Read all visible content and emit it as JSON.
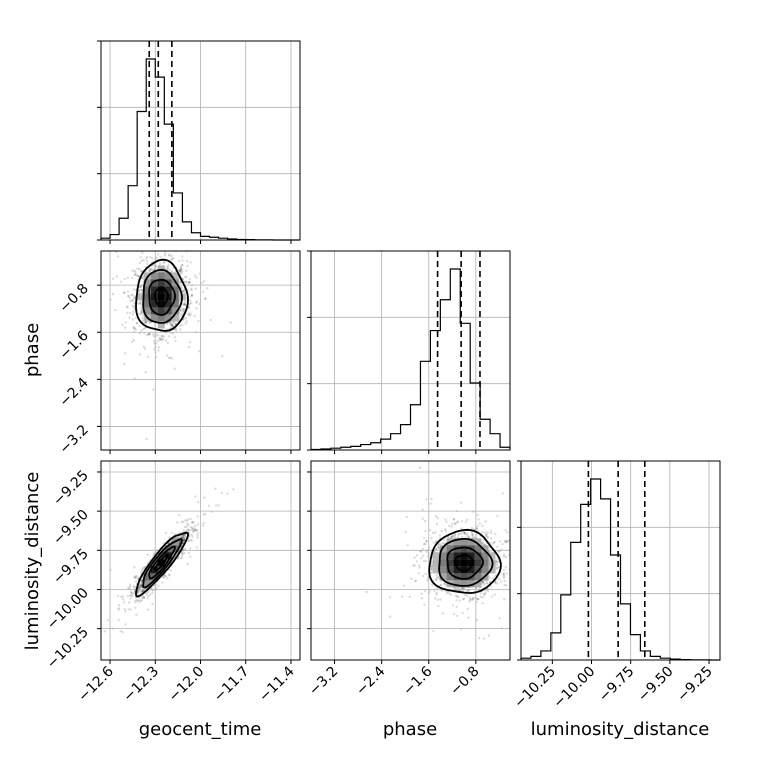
{
  "chart_data": {
    "type": "corner",
    "parameters": [
      "geocent_time",
      "phase",
      "luminosity_distance"
    ],
    "labels": {
      "geocent_time": "geocent_time",
      "phase": "phase",
      "luminosity_distance": "luminosity_distance"
    },
    "ranges": {
      "geocent_time": [
        -12.66,
        -11.34
      ],
      "phase": [
        -3.6,
        -0.22
      ],
      "luminosity_distance": [
        -10.45,
        -9.18
      ]
    },
    "ticks": {
      "geocent_time": [
        {
          "v": -12.6,
          "t": "−12.6"
        },
        {
          "v": -12.3,
          "t": "−12.3"
        },
        {
          "v": -12.0,
          "t": "−12.0"
        },
        {
          "v": -11.7,
          "t": "−11.7"
        },
        {
          "v": -11.4,
          "t": "−11.4"
        }
      ],
      "phase": [
        {
          "v": -3.2,
          "t": "−3.2"
        },
        {
          "v": -2.4,
          "t": "−2.4"
        },
        {
          "v": -1.6,
          "t": "−1.6"
        },
        {
          "v": -0.8,
          "t": "−0.8"
        }
      ],
      "luminosity_distance": [
        {
          "v": -10.25,
          "t": "−10.25"
        },
        {
          "v": -10.0,
          "t": "−10.00"
        },
        {
          "v": -9.75,
          "t": "−9.75"
        },
        {
          "v": -9.5,
          "t": "−9.50"
        },
        {
          "v": -9.25,
          "t": "−9.25"
        }
      ]
    },
    "histograms": {
      "geocent_time": {
        "edges_start": -12.66,
        "bin_width": 0.06,
        "counts": [
          1,
          3,
          12,
          30,
          71,
          100,
          90,
          64,
          26,
          10,
          4,
          2,
          1.5,
          1,
          0.6,
          0.3,
          0.2,
          0.1,
          0.05,
          0.02,
          0.01,
          0
        ],
        "quantiles": [
          -12.34,
          -12.28,
          -12.19
        ]
      },
      "phase": {
        "edges_start": -3.6,
        "bin_width": 0.169,
        "counts": [
          0.3,
          0.6,
          1,
          1.5,
          2,
          3,
          4,
          6,
          9,
          14,
          25,
          49,
          66,
          83,
          100,
          70,
          37,
          17,
          9,
          1.5
        ],
        "quantiles": [
          -1.45,
          -1.05,
          -0.73
        ]
      },
      "luminosity_distance": {
        "edges_start": -10.45,
        "bin_width": 0.0635,
        "counts": [
          1,
          2,
          5,
          15,
          36,
          65,
          86,
          100,
          89,
          58,
          31,
          14,
          5,
          2,
          1,
          0.5,
          0.2,
          0.1,
          0.05,
          0.02
        ],
        "quantiles": [
          -10.02,
          -9.83,
          -9.66
        ]
      }
    },
    "pairs": [
      {
        "x": "geocent_time",
        "y": "phase",
        "center": [
          -12.26,
          -1.0
        ],
        "sigma": [
          0.085,
          0.3
        ],
        "rho": 0
      },
      {
        "x": "geocent_time",
        "y": "luminosity_distance",
        "center": [
          -12.26,
          -9.83
        ],
        "sigma": [
          0.085,
          0.1
        ],
        "rho": 0.9
      },
      {
        "x": "phase",
        "y": "luminosity_distance",
        "center": [
          -1.0,
          -9.83
        ],
        "sigma": [
          0.3,
          0.1
        ],
        "rho": 0
      }
    ],
    "grid": true,
    "contour_levels_sigma": [
      0.5,
      1.0,
      1.5,
      2.0
    ]
  }
}
